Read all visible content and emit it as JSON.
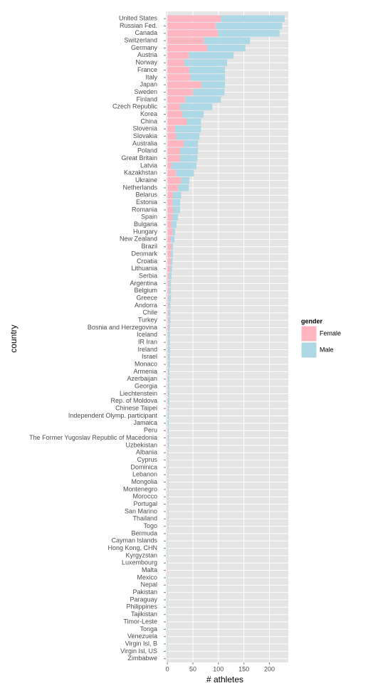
{
  "chart_data": {
    "type": "bar",
    "orientation": "horizontal",
    "stacked": true,
    "x_label": "# athletes",
    "y_label": "country",
    "legend_title": "gender",
    "legend_position": "right",
    "grid": true,
    "xlim": [
      -3,
      237
    ],
    "xticks": [
      0,
      50,
      100,
      150,
      200
    ],
    "categories": [
      "United States",
      "Russian Fed.",
      "Canada",
      "Switzerland",
      "Germany",
      "Austria",
      "Norway",
      "France",
      "Italy",
      "Japan",
      "Sweden",
      "Finland",
      "Czech Republic",
      "Korea",
      "China",
      "Slovenia",
      "Slovakia",
      "Australia",
      "Poland",
      "Great Britain",
      "Latvia",
      "Kazakhstan",
      "Ukraine",
      "Netherlands",
      "Belarus",
      "Estonia",
      "Romania",
      "Spain",
      "Bulgaria",
      "Hungary",
      "New Zealand",
      "Brazil",
      "Denmark",
      "Croatia",
      "Lithuania",
      "Serbia",
      "Argentina",
      "Belgium",
      "Greece",
      "Andorra",
      "Chile",
      "Turkey",
      "Bosnia and Herzegovina",
      "Iceland",
      "IR Iran",
      "Ireland",
      "Israel",
      "Monaco",
      "Armenia",
      "Azerbaijan",
      "Georgia",
      "Liechtenstein",
      "Rep. of Moldova",
      "Chinese Taipei",
      "Independent Olymp. participant",
      "Jamaica",
      "Peru",
      "The Former Yugoslav Republic of Macedonia",
      "Uzbekistan",
      "Albania",
      "Cyprus",
      "Dominica",
      "Lebanon",
      "Mongolia",
      "Montenegro",
      "Morocco",
      "Portugal",
      "San Marino",
      "Thailand",
      "Togo",
      "Bermuda",
      "Cayman Islands",
      "Hong Kong, CHN",
      "Kyrgyzstan",
      "Luxembourg",
      "Malta",
      "Mexico",
      "Nepal",
      "Pakistan",
      "Paraguay",
      "Philippines",
      "Tajikistan",
      "Timor-Leste",
      "Tonga",
      "Venezuela",
      "Virgin Isl, B",
      "Virgin Isl, US",
      "Zimbabwe"
    ],
    "series": [
      {
        "name": "Female",
        "color": "#ffb6c1",
        "values": [
          105,
          95,
          99,
          72,
          78,
          42,
          33,
          43,
          45,
          67,
          50,
          35,
          25,
          29,
          38,
          15,
          17,
          32,
          25,
          25,
          8,
          17,
          27,
          21,
          11,
          10,
          11,
          10,
          8,
          10,
          7,
          8,
          7,
          6,
          5,
          3,
          3,
          3,
          2,
          2,
          2,
          2,
          2,
          1,
          1,
          1,
          1,
          1,
          1,
          1,
          1,
          1,
          1,
          1,
          0,
          0,
          1,
          1,
          1,
          1,
          1,
          1,
          1,
          1,
          1,
          1,
          1,
          1,
          1,
          1,
          0,
          0,
          0,
          0,
          0,
          1,
          0,
          0,
          0,
          0,
          0,
          0,
          0,
          0,
          0,
          0,
          0,
          0
        ]
      },
      {
        "name": "Male",
        "color": "#add8e6",
        "values": [
          125,
          130,
          121,
          90,
          75,
          88,
          84,
          70,
          68,
          46,
          62,
          70,
          63,
          42,
          28,
          51,
          46,
          28,
          35,
          34,
          49,
          35,
          16,
          21,
          16,
          15,
          14,
          11,
          10,
          5,
          7,
          3,
          4,
          4,
          4,
          5,
          4,
          4,
          5,
          4,
          4,
          4,
          3,
          4,
          4,
          4,
          4,
          4,
          3,
          3,
          3,
          3,
          3,
          2,
          3,
          3,
          2,
          2,
          2,
          1,
          1,
          1,
          1,
          1,
          1,
          1,
          1,
          1,
          1,
          1,
          1,
          1,
          1,
          1,
          1,
          0,
          1,
          1,
          1,
          1,
          1,
          1,
          1,
          1,
          1,
          1,
          1,
          1
        ]
      }
    ]
  }
}
